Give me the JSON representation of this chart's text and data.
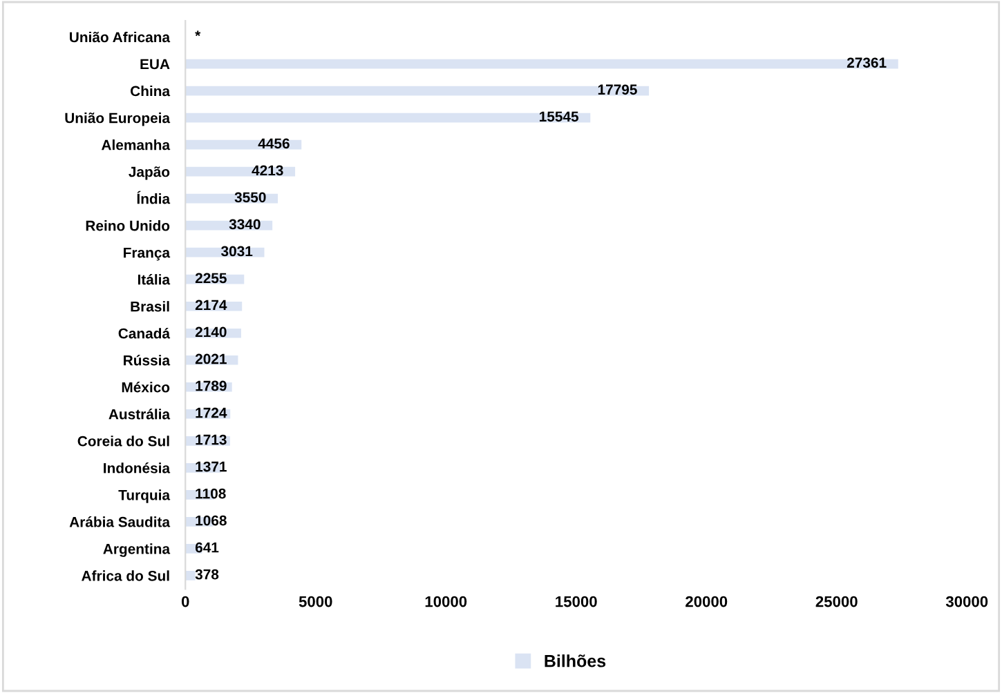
{
  "chart_data": {
    "type": "bar",
    "orientation": "horizontal",
    "categories": [
      "União Africana",
      "EUA",
      "China",
      "União Europeia",
      "Alemanha",
      "Japão",
      "Índia",
      "Reino Unido",
      "França",
      "Itália",
      "Brasil",
      "Canadá",
      "Rússia",
      "México",
      "Austrália",
      "Coreia do Sul",
      "Indonésia",
      "Turquia",
      "Arábia Saudita",
      "Argentina",
      "Africa do Sul"
    ],
    "series": [
      {
        "name": "Bilhões",
        "color": "#dae3f3",
        "values": [
          null,
          27361,
          17795,
          15545,
          4456,
          4213,
          3550,
          3340,
          3031,
          2255,
          2174,
          2140,
          2021,
          1789,
          1724,
          1713,
          1371,
          1108,
          1068,
          641,
          378
        ],
        "value_labels": [
          "*",
          "27361",
          "17795",
          "15545",
          "4456",
          "4213",
          "3550",
          "3340",
          "3031",
          "2255",
          "2174",
          "2140",
          "2021",
          "1789",
          "1724",
          "1713",
          "1371",
          "1108",
          "1068",
          "641",
          "378"
        ]
      }
    ],
    "xlim": [
      0,
      30000
    ],
    "xticks": [
      0,
      5000,
      10000,
      15000,
      20000,
      25000,
      30000
    ],
    "grid": false,
    "legend": "bottom"
  }
}
